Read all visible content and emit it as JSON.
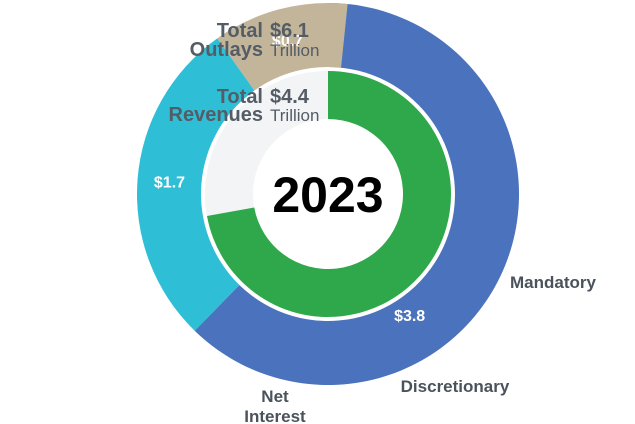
{
  "chart_data": {
    "type": "pie",
    "title": "2023",
    "outer_ring": {
      "label": [
        "Total",
        "Outlays"
      ],
      "value_text": "$6.1",
      "unit": "Trillion",
      "total": 6.1,
      "slices": [
        {
          "name": "Mandatory",
          "value": 3.8,
          "value_label": "$3.8",
          "color": "#4a72bd"
        },
        {
          "name": "Discretionary",
          "value": 1.7,
          "value_label": "$1.7",
          "color": "#2ebfd6"
        },
        {
          "name": "Net Interest",
          "value": 0.7,
          "value_label": "$0.7",
          "color": "#c3b59a",
          "name_lines": [
            "Net",
            "Interest"
          ]
        }
      ]
    },
    "inner_ring": {
      "label": [
        "Total",
        "Revenues"
      ],
      "value_text": "$4.4",
      "unit": "Trillion",
      "total": 4.4,
      "fill_color": "#2ea84a"
    },
    "background_color": "#f3f4f6"
  }
}
